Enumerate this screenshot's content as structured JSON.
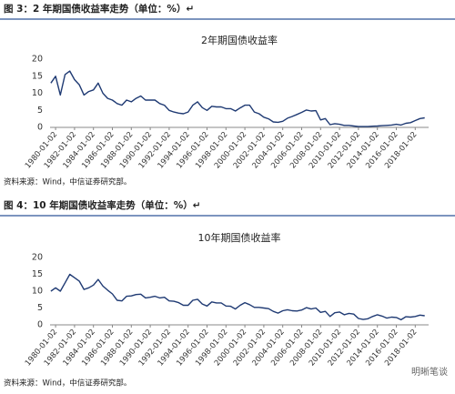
{
  "figures": [
    {
      "caption": "图 3：2 年期国债收益率走势（单位：%）↵",
      "source": "资料来源：Wind，中信证券研究部。",
      "chart_data": {
        "type": "line",
        "title": "2年期国债收益率",
        "color": "#1f3a73",
        "x": [
          "1979-07-02",
          "1980-01-02",
          "1980-07-02",
          "1981-01-02",
          "1981-07-02",
          "1982-01-02",
          "1982-07-02",
          "1983-01-02",
          "1983-07-02",
          "1984-01-02",
          "1984-07-02",
          "1985-01-02",
          "1985-07-02",
          "1986-01-02",
          "1986-07-02",
          "1987-01-02",
          "1987-07-02",
          "1988-01-02",
          "1988-07-02",
          "1989-01-02",
          "1989-07-02",
          "1990-01-02",
          "1990-07-02",
          "1991-01-02",
          "1991-07-02",
          "1992-01-02",
          "1992-07-02",
          "1993-01-02",
          "1993-07-02",
          "1994-01-02",
          "1994-07-02",
          "1995-01-02",
          "1995-07-02",
          "1996-01-02",
          "1996-07-02",
          "1997-01-02",
          "1997-07-02",
          "1998-01-02",
          "1998-07-02",
          "1999-01-02",
          "1999-07-02",
          "2000-01-02",
          "2000-07-02",
          "2001-01-02",
          "2001-07-02",
          "2002-01-02",
          "2002-07-02",
          "2003-01-02",
          "2003-07-02",
          "2004-01-02",
          "2004-07-02",
          "2005-01-02",
          "2005-07-02",
          "2006-01-02",
          "2006-07-02",
          "2007-01-02",
          "2007-07-02",
          "2008-01-02",
          "2008-07-02",
          "2009-01-02",
          "2009-07-02",
          "2010-01-02",
          "2010-07-02",
          "2011-01-02",
          "2011-07-02",
          "2012-01-02",
          "2012-07-02",
          "2013-01-02",
          "2013-07-02",
          "2014-01-02",
          "2014-07-02",
          "2015-01-02",
          "2015-07-02",
          "2016-01-02",
          "2016-07-02",
          "2017-01-02",
          "2017-07-02",
          "2018-01-02",
          "2018-07-02",
          "2019-01-02"
        ],
        "values": [
          13,
          15,
          9.5,
          15.5,
          16.5,
          14,
          12.5,
          9.5,
          10.5,
          11,
          13,
          10,
          8.5,
          8,
          7,
          6.5,
          8,
          7.5,
          8.5,
          9.2,
          8,
          8,
          8,
          7,
          6.5,
          5,
          4.5,
          4.2,
          4,
          4.5,
          6.5,
          7.5,
          5.8,
          5,
          6.2,
          6,
          6,
          5.5,
          5.5,
          4.8,
          5.7,
          6.5,
          6.5,
          4.5,
          4,
          3,
          2.5,
          1.6,
          1.5,
          1.8,
          2.7,
          3.2,
          3.8,
          4.4,
          5.1,
          4.8,
          4.9,
          2.2,
          2.6,
          0.8,
          1.1,
          0.9,
          0.6,
          0.6,
          0.4,
          0.25,
          0.25,
          0.25,
          0.35,
          0.4,
          0.5,
          0.6,
          0.7,
          0.9,
          0.7,
          1.2,
          1.4,
          2,
          2.6,
          2.8
        ],
        "xlim": [
          "1979-06-02",
          "2019-06-02"
        ],
        "xticks": [
          "1980-01-02",
          "1982-01-02",
          "1984-01-02",
          "1986-01-02",
          "1988-01-02",
          "1990-01-02",
          "1992-01-02",
          "1994-01-02",
          "1996-01-02",
          "1998-01-02",
          "2000-01-02",
          "2002-01-02",
          "2004-01-02",
          "2006-01-02",
          "2008-01-02",
          "2010-01-02",
          "2012-01-02",
          "2014-01-02",
          "2016-01-02",
          "2018-01-02"
        ],
        "ylim": [
          0,
          20
        ],
        "yticks": [
          0,
          5,
          10,
          15,
          20
        ]
      }
    },
    {
      "caption": "图 4：10 年期国债收益率走势（单位：%）↵",
      "source": "资料来源：Wind，中信证券研究部。",
      "chart_data": {
        "type": "line",
        "title": "10年期国债收益率",
        "color": "#1f3a73",
        "x": [
          "1979-07-02",
          "1980-01-02",
          "1980-07-02",
          "1981-01-02",
          "1981-07-02",
          "1982-01-02",
          "1982-07-02",
          "1983-01-02",
          "1983-07-02",
          "1984-01-02",
          "1984-07-02",
          "1985-01-02",
          "1985-07-02",
          "1986-01-02",
          "1986-07-02",
          "1987-01-02",
          "1987-07-02",
          "1988-01-02",
          "1988-07-02",
          "1989-01-02",
          "1989-07-02",
          "1990-01-02",
          "1990-07-02",
          "1991-01-02",
          "1991-07-02",
          "1992-01-02",
          "1992-07-02",
          "1993-01-02",
          "1993-07-02",
          "1994-01-02",
          "1994-07-02",
          "1995-01-02",
          "1995-07-02",
          "1996-01-02",
          "1996-07-02",
          "1997-01-02",
          "1997-07-02",
          "1998-01-02",
          "1998-07-02",
          "1999-01-02",
          "1999-07-02",
          "2000-01-02",
          "2000-07-02",
          "2001-01-02",
          "2001-07-02",
          "2002-01-02",
          "2002-07-02",
          "2003-01-02",
          "2003-07-02",
          "2004-01-02",
          "2004-07-02",
          "2005-01-02",
          "2005-07-02",
          "2006-01-02",
          "2006-07-02",
          "2007-01-02",
          "2007-07-02",
          "2008-01-02",
          "2008-07-02",
          "2009-01-02",
          "2009-07-02",
          "2010-01-02",
          "2010-07-02",
          "2011-01-02",
          "2011-07-02",
          "2012-01-02",
          "2012-07-02",
          "2013-01-02",
          "2013-07-02",
          "2014-01-02",
          "2014-07-02",
          "2015-01-02",
          "2015-07-02",
          "2016-01-02",
          "2016-07-02",
          "2017-01-02",
          "2017-07-02",
          "2018-01-02",
          "2018-07-02",
          "2019-01-02"
        ],
        "values": [
          10,
          11,
          10,
          12.5,
          15,
          14,
          13,
          10.5,
          11,
          11.8,
          13.5,
          11.5,
          10.3,
          9.2,
          7.3,
          7.1,
          8.5,
          8.6,
          9,
          9.1,
          8,
          8.2,
          8.5,
          8,
          8.2,
          7.1,
          7,
          6.6,
          5.8,
          5.8,
          7.3,
          7.6,
          6.2,
          5.6,
          6.8,
          6.5,
          6.5,
          5.6,
          5.5,
          4.7,
          5.8,
          6.6,
          6,
          5.2,
          5.2,
          5,
          4.8,
          4,
          3.5,
          4.2,
          4.5,
          4.2,
          4.1,
          4.4,
          5.1,
          4.7,
          5,
          3.7,
          4,
          2.5,
          3.6,
          3.8,
          3,
          3.4,
          3.2,
          1.9,
          1.6,
          1.8,
          2.5,
          3,
          2.6,
          2,
          2.3,
          2.2,
          1.5,
          2.4,
          2.3,
          2.5,
          2.9,
          2.7
        ],
        "xlim": [
          "1979-06-02",
          "2019-06-02"
        ],
        "xticks": [
          "1980-01-02",
          "1982-01-02",
          "1984-01-02",
          "1986-01-02",
          "1988-01-02",
          "1990-01-02",
          "1992-01-02",
          "1994-01-02",
          "1996-01-02",
          "1998-01-02",
          "2000-01-02",
          "2002-01-02",
          "2004-01-02",
          "2006-01-02",
          "2008-01-02",
          "2010-01-02",
          "2012-01-02",
          "2014-01-02",
          "2016-01-02",
          "2018-01-02"
        ],
        "ylim": [
          0,
          20
        ],
        "yticks": [
          0,
          5,
          10,
          15,
          20
        ]
      }
    }
  ],
  "watermark": "明晰笔谈"
}
